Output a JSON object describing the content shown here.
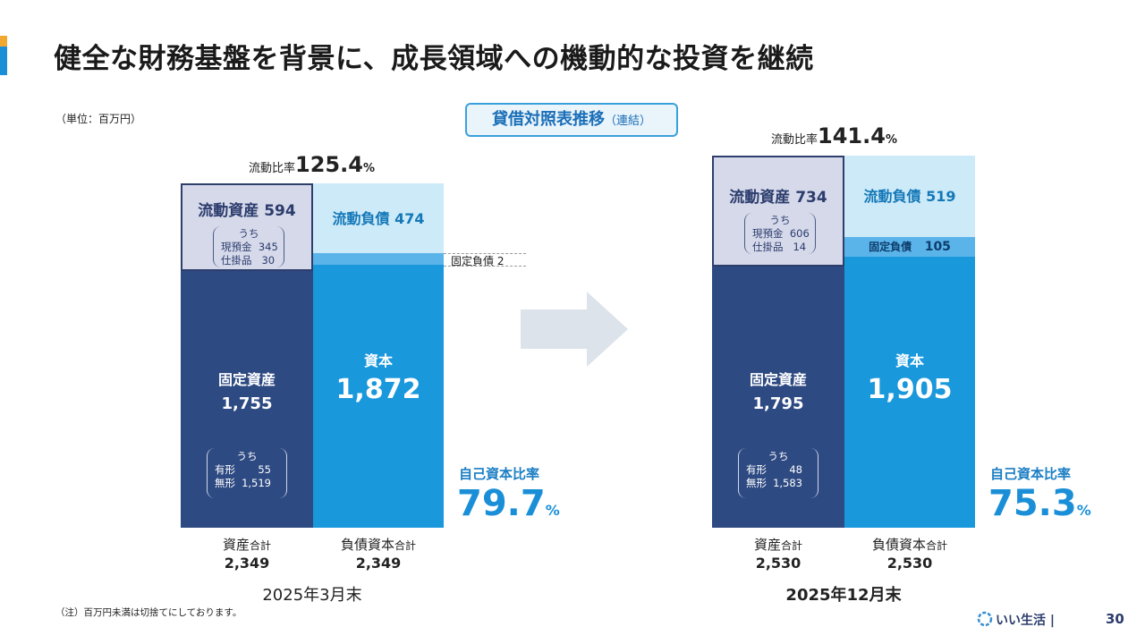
{
  "title": "健全な財務基盤を背景に、成長領域への機動的な投資を継続",
  "unit": "（単位：百万円）",
  "bs_title": {
    "main": "貸借対照表推移",
    "sub": "（連結）"
  },
  "common": {
    "current_ratio_label": "流動比率",
    "current_assets_label": "流動資産",
    "current_liab_label": "流動負債",
    "fixed_liab_label": "固定負債",
    "fixed_assets_label": "固定資産",
    "equity_label": "資本",
    "of_which": "うち",
    "cash_label": "現預金",
    "wip_label": "仕掛品",
    "tangible_label": "有形",
    "intangible_label": "無形",
    "equity_ratio_label": "自己資本比率",
    "total_assets_main": "資産",
    "total_assets_suffix": "合計",
    "total_le_main": "負債資本",
    "total_le_suffix": "合計",
    "pct": "%"
  },
  "periods": [
    {
      "period": "2025年3月末",
      "current_ratio_value": "125.4",
      "current_assets": "594",
      "cash": "345",
      "wip": "30",
      "current_liab": "474",
      "fixed_liab": "2",
      "fixed_assets": "1,755",
      "tangible": "55",
      "intangible": "1,519",
      "equity": "1,872",
      "equity_ratio_value": "79.7",
      "total_assets": "2,349",
      "total_le": "2,349"
    },
    {
      "period": "2025年12月末",
      "current_ratio_value": "141.4",
      "current_assets": "734",
      "cash": "606",
      "wip": "14",
      "current_liab": "519",
      "fixed_liab": "105",
      "fixed_assets": "1,795",
      "tangible": "48",
      "intangible": "1,583",
      "equity": "1,905",
      "equity_ratio_value": "75.3",
      "total_assets": "2,530",
      "total_le": "2,530"
    }
  ],
  "note": "（注）百万円未満は切捨てにしております。",
  "logo_text": "いい生活",
  "page_number": "30",
  "colors": {
    "current_assets": "#d5d9ea",
    "fixed_assets": "#2e4a82",
    "current_liab": "#cdeaf8",
    "fixed_liab": "#5ab4ea",
    "equity": "#1a98dc",
    "arrow": "#dde3ea"
  }
}
